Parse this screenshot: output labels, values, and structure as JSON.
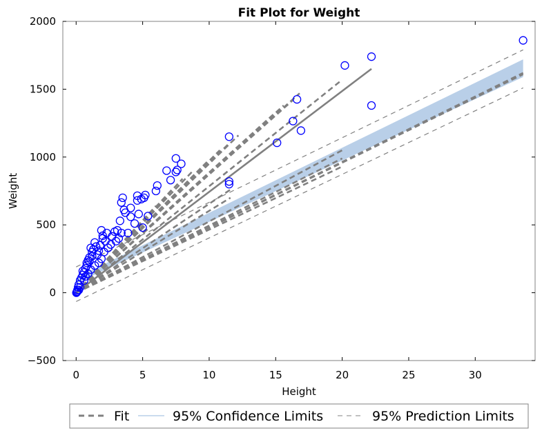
{
  "chart_data": {
    "type": "scatter",
    "title": "Fit Plot for Weight",
    "xlabel": "Height",
    "ylabel": "Weight",
    "xlim": [
      -1,
      34.5
    ],
    "ylim": [
      -500,
      2000
    ],
    "xticks": [
      0,
      5,
      10,
      15,
      20,
      25,
      30
    ],
    "yticks": [
      -500,
      0,
      500,
      1000,
      1500,
      2000
    ],
    "xtick_labels": [
      "0",
      "5",
      "10",
      "15",
      "20",
      "25",
      "30"
    ],
    "ytick_labels": [
      "−500",
      "0",
      "500",
      "1000",
      "1500",
      "2000"
    ],
    "grid": false,
    "legend_position": "bottom",
    "colors": {
      "points": "#0000ff",
      "fit": "#808080",
      "confidence": "#b9cfe8",
      "prediction": "#808080"
    },
    "legend": [
      {
        "label": "Fit",
        "style": "dashed-thick"
      },
      {
        "label": "95% Confidence Limits",
        "style": "band"
      },
      {
        "label": "95% Prediction Limits",
        "style": "dashed-thin"
      }
    ],
    "scatter": [
      [
        33.6,
        1860
      ],
      [
        22.2,
        1740
      ],
      [
        20.2,
        1675
      ],
      [
        22.2,
        1380
      ],
      [
        16.6,
        1425
      ],
      [
        16.3,
        1265
      ],
      [
        16.9,
        1195
      ],
      [
        15.1,
        1105
      ],
      [
        11.5,
        1150
      ],
      [
        11.5,
        820
      ],
      [
        11.5,
        800
      ],
      [
        7.5,
        990
      ],
      [
        7.6,
        905
      ],
      [
        7.5,
        890
      ],
      [
        7.9,
        950
      ],
      [
        6.8,
        900
      ],
      [
        7.1,
        830
      ],
      [
        6.1,
        790
      ],
      [
        6.0,
        750
      ],
      [
        5.2,
        720
      ],
      [
        5.1,
        700
      ],
      [
        4.9,
        690
      ],
      [
        4.6,
        715
      ],
      [
        4.6,
        680
      ],
      [
        5.4,
        565
      ],
      [
        4.7,
        580
      ],
      [
        5.0,
        480
      ],
      [
        4.4,
        510
      ],
      [
        3.5,
        700
      ],
      [
        3.4,
        665
      ],
      [
        3.6,
        610
      ],
      [
        3.7,
        590
      ],
      [
        4.1,
        625
      ],
      [
        4.1,
        560
      ],
      [
        3.3,
        530
      ],
      [
        3.9,
        440
      ],
      [
        3.4,
        440
      ],
      [
        3.1,
        460
      ],
      [
        2.9,
        450
      ],
      [
        2.7,
        415
      ],
      [
        2.6,
        355
      ],
      [
        2.3,
        440
      ],
      [
        2.2,
        380
      ],
      [
        2.0,
        400
      ],
      [
        1.9,
        460
      ],
      [
        2.0,
        420
      ],
      [
        1.8,
        350
      ],
      [
        1.7,
        310
      ],
      [
        1.5,
        340
      ],
      [
        1.4,
        370
      ],
      [
        1.3,
        320
      ],
      [
        1.2,
        300
      ],
      [
        1.2,
        270
      ],
      [
        1.1,
        330
      ],
      [
        1.0,
        260
      ],
      [
        0.9,
        240
      ],
      [
        0.8,
        200
      ],
      [
        0.7,
        180
      ],
      [
        0.6,
        150
      ],
      [
        0.5,
        130
      ],
      [
        0.4,
        110
      ],
      [
        0.3,
        90
      ],
      [
        0.2,
        60
      ],
      [
        0.15,
        40
      ],
      [
        0.1,
        20
      ],
      [
        0.05,
        5
      ],
      [
        0.02,
        0
      ],
      [
        0.5,
        160
      ],
      [
        0.8,
        220
      ],
      [
        1.0,
        230
      ],
      [
        1.6,
        280
      ],
      [
        2.1,
        300
      ],
      [
        2.4,
        330
      ],
      [
        3.0,
        380
      ],
      [
        3.2,
        400
      ],
      [
        1.9,
        250
      ],
      [
        1.7,
        220
      ],
      [
        1.4,
        200
      ],
      [
        1.1,
        170
      ],
      [
        0.7,
        120
      ],
      [
        0.3,
        40
      ],
      [
        0.2,
        20
      ],
      [
        0.1,
        10
      ],
      [
        0.6,
        90
      ],
      [
        0.9,
        140
      ]
    ],
    "fit_lines": [
      {
        "x": [
          0,
          33.6
        ],
        "y": [
          0,
          1620
        ],
        "style": "dashed"
      },
      {
        "x": [
          0,
          33.6
        ],
        "y": [
          0,
          1610
        ],
        "style": "dashed"
      },
      {
        "x": [
          0,
          22.2
        ],
        "y": [
          0,
          1650
        ],
        "style": "solid"
      },
      {
        "x": [
          0,
          20.0
        ],
        "y": [
          0,
          1570
        ],
        "style": "dashed"
      },
      {
        "x": [
          0,
          16.8
        ],
        "y": [
          0,
          1470
        ],
        "style": "dashed"
      },
      {
        "x": [
          0,
          16.3
        ],
        "y": [
          0,
          1420
        ],
        "style": "dashed"
      },
      {
        "x": [
          0,
          15.6
        ],
        "y": [
          0,
          1380
        ],
        "style": "dashed"
      },
      {
        "x": [
          0,
          15.0
        ],
        "y": [
          0,
          1330
        ],
        "style": "dashed"
      },
      {
        "x": [
          0,
          12.2
        ],
        "y": [
          0,
          1160
        ],
        "style": "dashed"
      },
      {
        "x": [
          0,
          11.6
        ],
        "y": [
          0,
          1110
        ],
        "style": "dashed"
      },
      {
        "x": [
          0,
          10.8
        ],
        "y": [
          0,
          1050
        ],
        "style": "dashed"
      },
      {
        "x": [
          0,
          10.0
        ],
        "y": [
          0,
          980
        ],
        "style": "dashed"
      },
      {
        "x": [
          0,
          8.8
        ],
        "y": [
          0,
          900
        ],
        "style": "dashed"
      },
      {
        "x": [
          0,
          8.0
        ],
        "y": [
          0,
          840
        ],
        "style": "dashed"
      },
      {
        "x": [
          0,
          7.2
        ],
        "y": [
          0,
          760
        ],
        "style": "dashed"
      },
      {
        "x": [
          0,
          6.8
        ],
        "y": [
          0,
          700
        ],
        "style": "dashed"
      },
      {
        "x": [
          0,
          6.0
        ],
        "y": [
          0,
          640
        ],
        "style": "dashed"
      },
      {
        "x": [
          0,
          20.0
        ],
        "y": [
          0,
          1050
        ],
        "style": "dashed"
      },
      {
        "x": [
          0,
          20.0
        ],
        "y": [
          0,
          990
        ],
        "style": "dashed"
      },
      {
        "x": [
          0,
          20.0
        ],
        "y": [
          0,
          930
        ],
        "style": "dashed"
      },
      {
        "x": [
          0,
          11.6
        ],
        "y": [
          0,
          760
        ],
        "style": "dashed"
      },
      {
        "x": [
          0,
          11.6
        ],
        "y": [
          0,
          700
        ],
        "style": "dashed"
      }
    ],
    "confidence_band": {
      "x": [
        0,
        33.6
      ],
      "lower": [
        70,
        1590
      ],
      "upper": [
        110,
        1720
      ]
    },
    "prediction_limits": {
      "x": [
        0,
        33.6
      ],
      "lower": [
        -65,
        1510
      ],
      "upper": [
        190,
        1790
      ]
    }
  }
}
